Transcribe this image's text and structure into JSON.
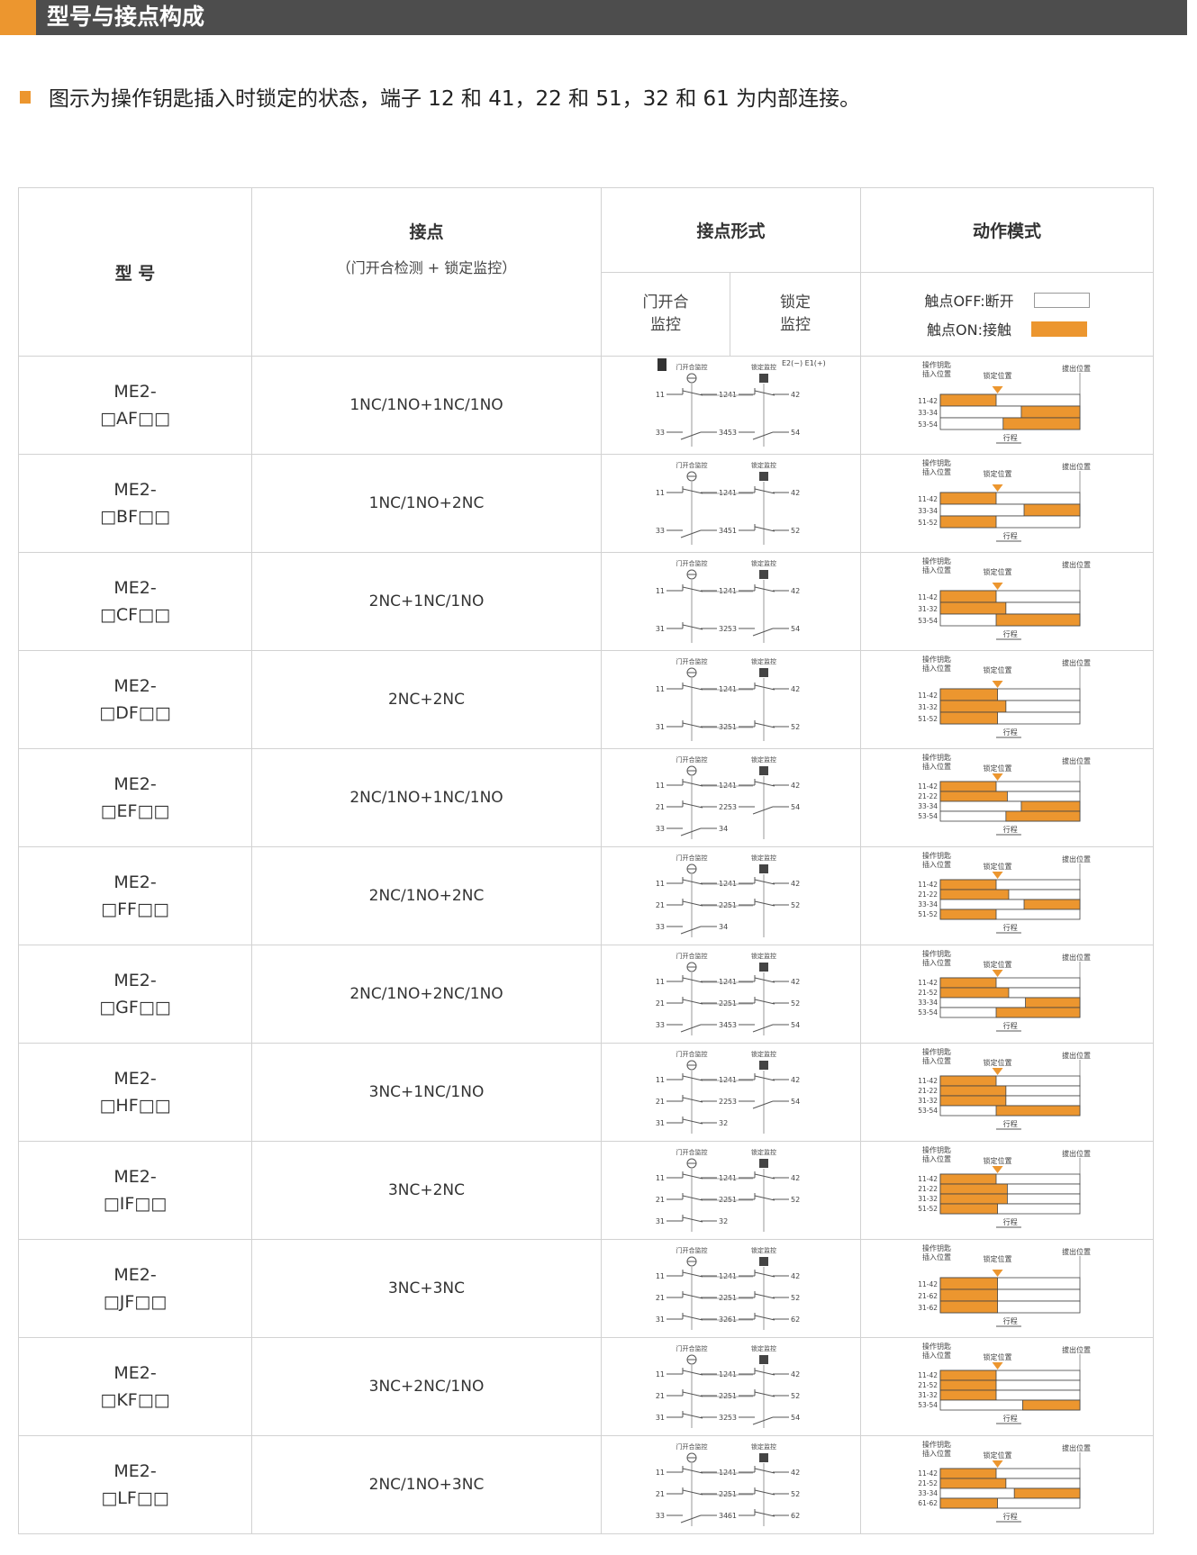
{
  "section_title": "型号与接点构成",
  "note": "图示为操作钥匙插入时锁定的状态，端子 12 和 41，22 和 51，32 和 61 为内部连接。",
  "colors": {
    "accent": "#ec962f",
    "banner": "#4d4d4d",
    "on": "#ec962f",
    "off": "#ffffff"
  },
  "header": {
    "model": "型 号",
    "contact": "接点",
    "contact_sub": "（门开合检测 + 锁定监控）",
    "form": "接点形式",
    "form_door1": "门开合",
    "form_door2": "监控",
    "form_lock1": "锁定",
    "form_lock2": "监控",
    "mode": "动作模式",
    "legend_off": "触点OFF:断开",
    "legend_on": "触点ON:接触"
  },
  "diagram_labels": {
    "door": "门开合监控",
    "lock": "锁定监控",
    "e2": "E2(−)",
    "e1": "E1(+)"
  },
  "chart_labels": {
    "insert": "操作钥匙",
    "insert2": "插入位置",
    "lock": "锁定位置",
    "pull": "拔出位置",
    "stroke": "行程"
  },
  "rows": [
    {
      "model1": "ME2-",
      "model2": "□AF□□",
      "contact": "1NC/1NO+1NC/1NO",
      "left": [
        [
          "11",
          "12",
          "NC"
        ],
        [
          "33",
          "34",
          "NO"
        ]
      ],
      "right": [
        [
          "41",
          "42",
          "NC"
        ],
        [
          "53",
          "54",
          "NO"
        ]
      ],
      "timing": [
        {
          "label": "11-42",
          "on": [
            0,
            0.4
          ]
        },
        {
          "label": "33-34",
          "on": [
            0.58,
            1
          ]
        },
        {
          "label": "53-54",
          "on": [
            0.45,
            1
          ]
        }
      ]
    },
    {
      "model1": "ME2-",
      "model2": "□BF□□",
      "contact": "1NC/1NO+2NC",
      "left": [
        [
          "11",
          "12",
          "NC"
        ],
        [
          "33",
          "34",
          "NO"
        ]
      ],
      "right": [
        [
          "41",
          "42",
          "NC"
        ],
        [
          "51",
          "52",
          "NC"
        ]
      ],
      "timing": [
        {
          "label": "11-42",
          "on": [
            0,
            0.4
          ]
        },
        {
          "label": "33-34",
          "on": [
            0.6,
            1
          ]
        },
        {
          "label": "51-52",
          "on": [
            0,
            0.4
          ]
        }
      ]
    },
    {
      "model1": "ME2-",
      "model2": "□CF□□",
      "contact": "2NC+1NC/1NO",
      "left": [
        [
          "11",
          "12",
          "NC"
        ],
        [
          "31",
          "32",
          "NC"
        ]
      ],
      "right": [
        [
          "41",
          "42",
          "NC"
        ],
        [
          "53",
          "54",
          "NO"
        ]
      ],
      "timing": [
        {
          "label": "11-42",
          "on": [
            0,
            0.4
          ]
        },
        {
          "label": "31-32",
          "on": [
            0,
            0.47
          ]
        },
        {
          "label": "53-54",
          "on": [
            0.4,
            1
          ]
        }
      ]
    },
    {
      "model1": "ME2-",
      "model2": "□DF□□",
      "contact": "2NC+2NC",
      "left": [
        [
          "11",
          "12",
          "NC"
        ],
        [
          "31",
          "32",
          "NC"
        ]
      ],
      "right": [
        [
          "41",
          "42",
          "NC"
        ],
        [
          "51",
          "52",
          "NC"
        ]
      ],
      "timing": [
        {
          "label": "11-42",
          "on": [
            0,
            0.41
          ]
        },
        {
          "label": "31-32",
          "on": [
            0,
            0.47
          ]
        },
        {
          "label": "51-52",
          "on": [
            0,
            0.41
          ]
        }
      ]
    },
    {
      "model1": "ME2-",
      "model2": "□EF□□",
      "contact": "2NC/1NO+1NC/1NO",
      "left": [
        [
          "11",
          "12",
          "NC"
        ],
        [
          "21",
          "22",
          "NC"
        ],
        [
          "33",
          "34",
          "NO"
        ]
      ],
      "right": [
        [
          "41",
          "42",
          "NC"
        ],
        [
          "53",
          "54",
          "NO"
        ]
      ],
      "timing": [
        {
          "label": "11-42",
          "on": [
            0,
            0.4
          ]
        },
        {
          "label": "21-22",
          "on": [
            0,
            0.48
          ]
        },
        {
          "label": "33-34",
          "on": [
            0.58,
            1
          ]
        },
        {
          "label": "53-54",
          "on": [
            0.47,
            1
          ]
        }
      ]
    },
    {
      "model1": "ME2-",
      "model2": "□FF□□",
      "contact": "2NC/1NO+2NC",
      "left": [
        [
          "11",
          "12",
          "NC"
        ],
        [
          "21",
          "22",
          "NC"
        ],
        [
          "33",
          "34",
          "NO"
        ]
      ],
      "right": [
        [
          "41",
          "42",
          "NC"
        ],
        [
          "51",
          "52",
          "NC"
        ]
      ],
      "timing": [
        {
          "label": "11-42",
          "on": [
            0,
            0.4
          ]
        },
        {
          "label": "21-22",
          "on": [
            0,
            0.49
          ]
        },
        {
          "label": "33-34",
          "on": [
            0.6,
            1
          ]
        },
        {
          "label": "51-52",
          "on": [
            0,
            0.4
          ]
        }
      ]
    },
    {
      "model1": "ME2-",
      "model2": "□GF□□",
      "contact": "2NC/1NO+2NC/1NO",
      "left": [
        [
          "11",
          "12",
          "NC"
        ],
        [
          "21",
          "22",
          "NC"
        ],
        [
          "33",
          "34",
          "NO"
        ]
      ],
      "right": [
        [
          "41",
          "42",
          "NC"
        ],
        [
          "51",
          "52",
          "NC"
        ],
        [
          "53",
          "54",
          "NO"
        ]
      ],
      "timing": [
        {
          "label": "11-42",
          "on": [
            0,
            0.4
          ]
        },
        {
          "label": "21-52",
          "on": [
            0,
            0.49
          ]
        },
        {
          "label": "33-34",
          "on": [
            0.61,
            1
          ]
        },
        {
          "label": "53-54",
          "on": [
            0.4,
            1
          ]
        }
      ]
    },
    {
      "model1": "ME2-",
      "model2": "□HF□□",
      "contact": "3NC+1NC/1NO",
      "left": [
        [
          "11",
          "12",
          "NC"
        ],
        [
          "21",
          "22",
          "NC"
        ],
        [
          "31",
          "32",
          "NC"
        ]
      ],
      "right": [
        [
          "41",
          "42",
          "NC"
        ],
        [
          "53",
          "54",
          "NO"
        ]
      ],
      "timing": [
        {
          "label": "11-42",
          "on": [
            0,
            0.4
          ]
        },
        {
          "label": "21-22",
          "on": [
            0,
            0.47
          ]
        },
        {
          "label": "31-32",
          "on": [
            0,
            0.47
          ]
        },
        {
          "label": "53-54",
          "on": [
            0.4,
            1
          ]
        }
      ]
    },
    {
      "model1": "ME2-",
      "model2": "□IF□□",
      "contact": "3NC+2NC",
      "left": [
        [
          "11",
          "12",
          "NC"
        ],
        [
          "21",
          "22",
          "NC"
        ],
        [
          "31",
          "32",
          "NC"
        ]
      ],
      "right": [
        [
          "41",
          "42",
          "NC"
        ],
        [
          "51",
          "52",
          "NC"
        ]
      ],
      "timing": [
        {
          "label": "11-42",
          "on": [
            0,
            0.4
          ]
        },
        {
          "label": "21-22",
          "on": [
            0,
            0.48
          ]
        },
        {
          "label": "31-32",
          "on": [
            0,
            0.48
          ]
        },
        {
          "label": "51-52",
          "on": [
            0,
            0.41
          ]
        }
      ]
    },
    {
      "model1": "ME2-",
      "model2": "□JF□□",
      "contact": "3NC+3NC",
      "left": [
        [
          "11",
          "12",
          "NC"
        ],
        [
          "21",
          "22",
          "NC"
        ],
        [
          "31",
          "32",
          "NC"
        ]
      ],
      "right": [
        [
          "41",
          "42",
          "NC"
        ],
        [
          "51",
          "52",
          "NC"
        ],
        [
          "61",
          "62",
          "NC"
        ]
      ],
      "timing": [
        {
          "label": "11-42",
          "on": [
            0,
            0.41
          ]
        },
        {
          "label": "21-62",
          "on": [
            0,
            0.41
          ]
        },
        {
          "label": "31-62",
          "on": [
            0,
            0.41
          ]
        }
      ]
    },
    {
      "model1": "ME2-",
      "model2": "□KF□□",
      "contact": "3NC+2NC/1NO",
      "left": [
        [
          "11",
          "12",
          "NC"
        ],
        [
          "21",
          "22",
          "NC"
        ],
        [
          "31",
          "32",
          "NC"
        ]
      ],
      "right": [
        [
          "41",
          "42",
          "NC"
        ],
        [
          "51",
          "52",
          "NC"
        ],
        [
          "53",
          "54",
          "NO"
        ]
      ],
      "timing": [
        {
          "label": "11-42",
          "on": [
            0,
            0.4
          ]
        },
        {
          "label": "21-52",
          "on": [
            0,
            0.4
          ]
        },
        {
          "label": "31-32",
          "on": [
            0,
            0.4
          ]
        },
        {
          "label": "53-54",
          "on": [
            0.59,
            1
          ]
        }
      ]
    },
    {
      "model1": "ME2-",
      "model2": "□LF□□",
      "contact": "2NC/1NO+3NC",
      "left": [
        [
          "11",
          "12",
          "NC"
        ],
        [
          "21",
          "22",
          "NC"
        ],
        [
          "33",
          "34",
          "NO"
        ]
      ],
      "right": [
        [
          "41",
          "42",
          "NC"
        ],
        [
          "51",
          "52",
          "NC"
        ],
        [
          "61",
          "62",
          "NC"
        ]
      ],
      "timing": [
        {
          "label": "11-42",
          "on": [
            0,
            0.4
          ]
        },
        {
          "label": "21-52",
          "on": [
            0,
            0.47
          ]
        },
        {
          "label": "33-34",
          "on": [
            0.53,
            1
          ]
        },
        {
          "label": "61-62",
          "on": [
            0,
            0.41
          ]
        }
      ]
    }
  ]
}
